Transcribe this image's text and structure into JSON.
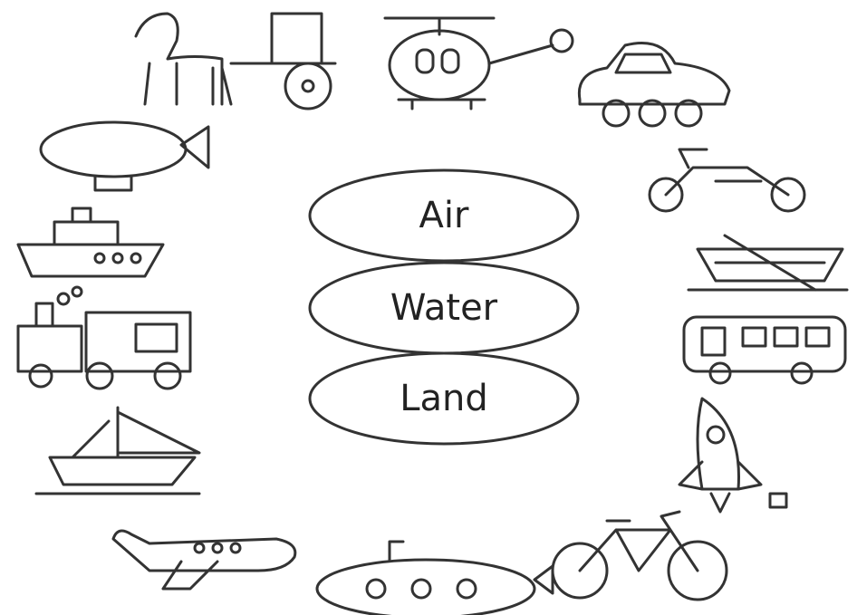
{
  "ovals": [
    "Air",
    "Water",
    "Land"
  ]
}
